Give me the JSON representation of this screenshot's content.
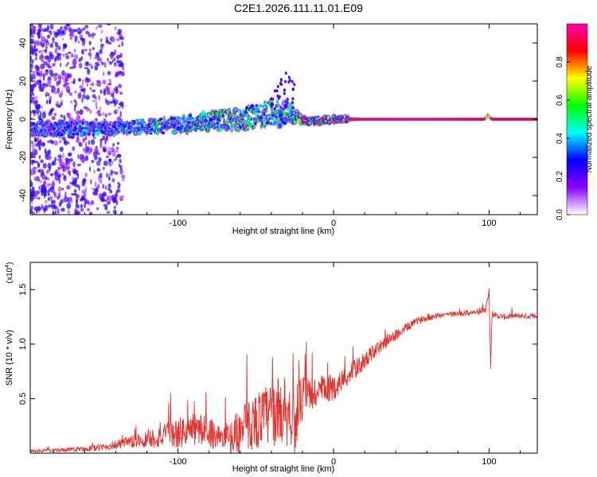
{
  "title": "C2E1.2026.111.11.01.E09",
  "chart_data": [
    {
      "type": "heatmap",
      "name": "spectrogram",
      "xlabel": "Height of straight line (km)",
      "ylabel": "Frequency (Hz)",
      "xlim": [
        -195,
        131
      ],
      "ylim": [
        -50,
        50
      ],
      "xticks": [
        -100,
        0,
        100
      ],
      "xtick_labels": [
        "-100",
        "0",
        "100"
      ],
      "yticks": [
        -40,
        -20,
        0,
        20,
        40
      ],
      "ytick_labels": [
        "-40",
        "-20",
        "0",
        "20",
        "40"
      ],
      "colorbar": {
        "label": "Normalized spectral amplitude",
        "range": [
          0,
          1
        ],
        "ticks": [
          0.0,
          0.2,
          0.4,
          0.6,
          0.8
        ],
        "tick_labels": [
          "0.0",
          "0.2",
          "0.4",
          "0.6",
          "0.8"
        ],
        "colors": [
          "#ffffff",
          "#8a00ff",
          "#0000ff",
          "#00ffff",
          "#00ff00",
          "#ffff00",
          "#ff0000",
          "#ff00aa"
        ]
      },
      "center_line": {
        "x": [
          -195,
          -150,
          -120,
          -100,
          -80,
          -60,
          -45,
          -35,
          -28,
          -22,
          -15,
          -8,
          0,
          10,
          20,
          60,
          97,
          99,
          102,
          131
        ],
        "freq_center": [
          -5,
          -5,
          -4,
          -3,
          -1,
          0,
          2,
          3,
          4,
          0,
          -1,
          -1,
          0,
          0,
          0,
          0,
          0,
          2,
          0,
          0
        ],
        "freq_width": [
          8,
          8,
          9,
          10,
          12,
          14,
          16,
          17,
          14,
          6,
          4,
          4,
          4,
          3,
          2,
          2,
          2,
          3,
          2,
          2
        ],
        "amplitude": [
          0.3,
          0.35,
          0.4,
          0.45,
          0.45,
          0.5,
          0.45,
          0.45,
          0.45,
          0.6,
          0.7,
          0.75,
          0.8,
          0.9,
          0.95,
          0.97,
          0.9,
          0.6,
          0.9,
          0.9
        ]
      }
    },
    {
      "type": "line",
      "name": "snr",
      "xlabel": "Height of straight line (km)",
      "ylabel": "SNR (10 * v/v)",
      "y_multiplier": "(x10",
      "y_multiplier_exp": "4",
      "y_multiplier_close": ")",
      "xlim": [
        -195,
        131
      ],
      "ylim": [
        0,
        1.75
      ],
      "xticks": [
        -100,
        0,
        100
      ],
      "xtick_labels": [
        "-100",
        "0",
        "100"
      ],
      "yticks": [
        0.5,
        1.0,
        1.5
      ],
      "ytick_labels": [
        "0.5",
        "1.0",
        "1.5"
      ],
      "color": "#e8302a",
      "series": [
        {
          "name": "SNR",
          "x": [
            -195,
            -170,
            -150,
            -130,
            -115,
            -100,
            -90,
            -80,
            -70,
            -60,
            -50,
            -40,
            -30,
            -25,
            -20,
            -10,
            0,
            10,
            20,
            30,
            40,
            50,
            55,
            60,
            70,
            80,
            90,
            95,
            98,
            100,
            101,
            102,
            105,
            110,
            120,
            131
          ],
          "y": [
            0.02,
            0.03,
            0.05,
            0.1,
            0.14,
            0.18,
            0.22,
            0.2,
            0.12,
            0.2,
            0.3,
            0.36,
            0.4,
            0.3,
            0.5,
            0.56,
            0.6,
            0.72,
            0.85,
            0.98,
            1.08,
            1.18,
            1.22,
            1.24,
            1.27,
            1.28,
            1.29,
            1.3,
            1.33,
            1.5,
            0.8,
            1.28,
            1.26,
            1.25,
            1.26,
            1.25
          ],
          "noise": [
            0.01,
            0.02,
            0.03,
            0.06,
            0.1,
            0.14,
            0.16,
            0.14,
            0.12,
            0.22,
            0.26,
            0.3,
            0.34,
            0.3,
            0.22,
            0.16,
            0.12,
            0.1,
            0.08,
            0.06,
            0.05,
            0.04,
            0.03,
            0.03,
            0.025,
            0.025,
            0.025,
            0.03,
            0.03,
            0.03,
            0.03,
            0.03,
            0.025,
            0.025,
            0.025,
            0.025
          ]
        }
      ]
    }
  ]
}
